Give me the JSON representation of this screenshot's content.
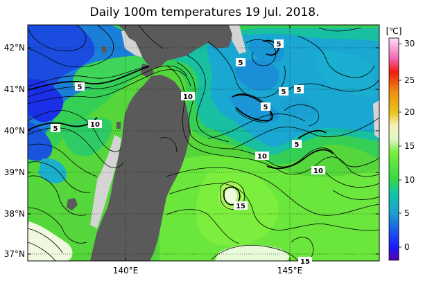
{
  "title": "Daily 100m temperatures 19 Jul. 2018.",
  "colorbar": {
    "unit": "[℃]",
    "ticks": [
      "30",
      "25",
      "20",
      "15",
      "10",
      "5",
      "0"
    ],
    "stops": [
      {
        "value": -2,
        "color": "#5b00b0"
      },
      {
        "value": 0,
        "color": "#1a1aff"
      },
      {
        "value": 5,
        "color": "#1a9fd0"
      },
      {
        "value": 8,
        "color": "#11c7a5"
      },
      {
        "value": 10,
        "color": "#35d844"
      },
      {
        "value": 14,
        "color": "#7aee3c"
      },
      {
        "value": 16,
        "color": "#dff8c6"
      },
      {
        "value": 18,
        "color": "#f8f0b8"
      },
      {
        "value": 20,
        "color": "#e9c51a"
      },
      {
        "value": 23,
        "color": "#f08d0f"
      },
      {
        "value": 26,
        "color": "#f11b10"
      },
      {
        "value": 28,
        "color": "#f468b5"
      },
      {
        "value": 31,
        "color": "#ffe0fb"
      }
    ]
  },
  "axes": {
    "lat_labels": [
      "42°N",
      "41°N",
      "40°N",
      "39°N",
      "38°N",
      "37°N"
    ],
    "lon_labels": [
      "140°E",
      "145°E"
    ]
  },
  "contour_labels": [
    {
      "text": "5"
    },
    {
      "text": "5"
    },
    {
      "text": "5"
    },
    {
      "text": "5"
    },
    {
      "text": "5"
    },
    {
      "text": "5"
    },
    {
      "text": "5"
    },
    {
      "text": "5"
    },
    {
      "text": "10"
    },
    {
      "text": "10"
    },
    {
      "text": "10"
    },
    {
      "text": "10"
    },
    {
      "text": "15"
    },
    {
      "text": "15"
    }
  ],
  "colors": {
    "land": "#5a5a5a",
    "coast_shelf": "#d8d8d8",
    "warm_green": "#5fdc3c",
    "cold_blue": "#1a9fd0",
    "deep_blue": "#1a2fe0"
  }
}
